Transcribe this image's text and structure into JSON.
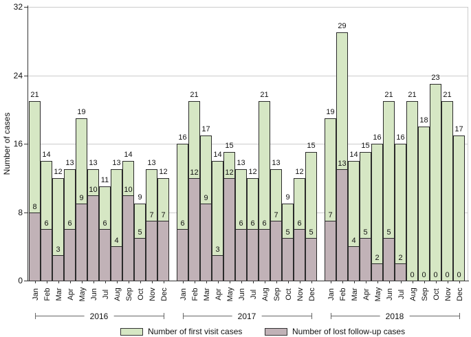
{
  "chart_data": {
    "type": "bar",
    "title": "",
    "xlabel": "",
    "ylabel": "Number of cases",
    "ylim": [
      0,
      32
    ],
    "yticks": [
      0,
      8,
      16,
      24,
      32
    ],
    "grid": true,
    "legend_position": "bottom",
    "months": [
      "Jan",
      "Feb",
      "Mar",
      "Apr",
      "May",
      "Jun",
      "Jul",
      "Aug",
      "Sep",
      "Oct",
      "Nov",
      "Dec"
    ],
    "series": [
      {
        "name": "Number of first visit cases",
        "color": "#d6e7c4"
      },
      {
        "name": "Number of lost follow-up cases",
        "color": "#c1b2b7"
      }
    ],
    "groups": [
      {
        "year": "2016",
        "first_visit": [
          21,
          14,
          12,
          13,
          19,
          13,
          11,
          13,
          14,
          9,
          13,
          12
        ],
        "lost_followup": [
          8,
          6,
          3,
          6,
          9,
          10,
          6,
          4,
          10,
          5,
          7,
          7
        ]
      },
      {
        "year": "2017",
        "first_visit": [
          16,
          21,
          17,
          14,
          15,
          13,
          12,
          21,
          13,
          9,
          12,
          15
        ],
        "lost_followup": [
          6,
          12,
          9,
          3,
          12,
          6,
          6,
          6,
          7,
          5,
          6,
          5
        ]
      },
      {
        "year": "2018",
        "first_visit": [
          19,
          29,
          14,
          15,
          16,
          21,
          16,
          21,
          18,
          23,
          21,
          17
        ],
        "lost_followup": [
          7,
          13,
          4,
          5,
          2,
          5,
          2,
          0,
          0,
          0,
          0,
          0
        ]
      }
    ]
  },
  "colors": {
    "grid": "#cccccc",
    "axis": "#333333",
    "bar_border": "#2a2a2a",
    "text": "#111111"
  }
}
